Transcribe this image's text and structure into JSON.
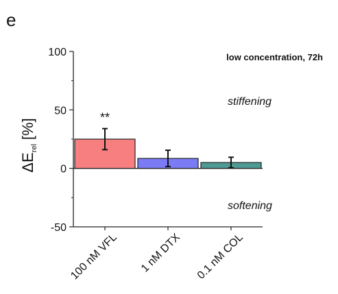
{
  "panel_label": "e",
  "chart_data": {
    "type": "bar",
    "title": "low concentration, 72h",
    "ylabel": {
      "main": "ΔE",
      "sub": "rel",
      "unit": "[%]"
    },
    "categories": [
      "100 nM VFL",
      "1 nM DTX",
      "0.1 nM COL"
    ],
    "values": [
      25,
      8.5,
      5
    ],
    "errors": [
      9,
      7,
      4.5
    ],
    "colors": [
      "#f77f7f",
      "#7b7bf5",
      "#4f9a94"
    ],
    "ylim": [
      -50,
      100
    ],
    "yticks": [
      "100",
      "50",
      "0",
      "-50"
    ],
    "annotations": {
      "upper": "stiffening",
      "lower": "softening"
    },
    "significance": [
      {
        "category": "100 nM VFL",
        "label": "**"
      }
    ]
  }
}
